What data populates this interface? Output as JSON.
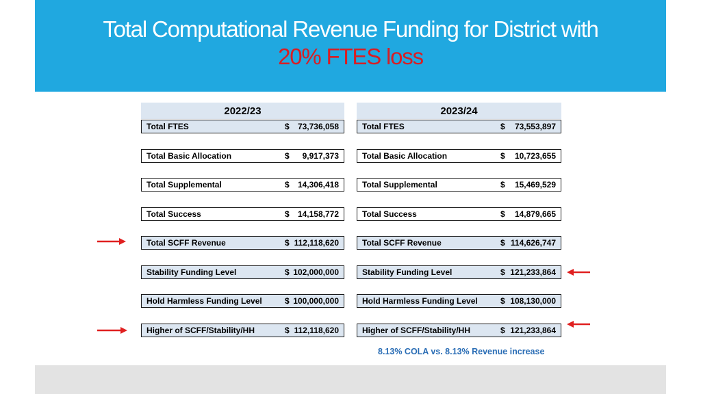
{
  "title": {
    "line1": "Total Computational Revenue Funding for District with",
    "line2": "20% FTES loss"
  },
  "left_table": {
    "year": "2022/23",
    "rows": [
      {
        "label": "Total FTES",
        "currency": "$",
        "amount": "73,736,058"
      },
      {
        "label": "Total Basic Allocation",
        "currency": "$",
        "amount": "9,917,373"
      },
      {
        "label": "Total Supplemental",
        "currency": "$",
        "amount": "14,306,418"
      },
      {
        "label": "Total Success",
        "currency": "$",
        "amount": "14,158,772"
      },
      {
        "label": "Total SCFF Revenue",
        "currency": "$",
        "amount": "112,118,620"
      },
      {
        "label": "Stability Funding Level",
        "currency": "$",
        "amount": "102,000,000"
      },
      {
        "label": "Hold Harmless Funding Level",
        "currency": "$",
        "amount": "100,000,000"
      },
      {
        "label": "Higher of SCFF/Stability/HH",
        "currency": "$",
        "amount": "112,118,620"
      }
    ]
  },
  "right_table": {
    "year": "2023/24",
    "rows": [
      {
        "label": "Total FTES",
        "currency": "$",
        "amount": "73,553,897"
      },
      {
        "label": "Total Basic Allocation",
        "currency": "$",
        "amount": "10,723,655"
      },
      {
        "label": "Total Supplemental",
        "currency": "$",
        "amount": "15,469,529"
      },
      {
        "label": "Total Success",
        "currency": "$",
        "amount": "14,879,665"
      },
      {
        "label": "Total SCFF Revenue",
        "currency": "$",
        "amount": "114,626,747"
      },
      {
        "label": "Stability Funding Level",
        "currency": "$",
        "amount": "121,233,864"
      },
      {
        "label": "Hold Harmless Funding Level",
        "currency": "$",
        "amount": "108,130,000"
      },
      {
        "label": "Higher of SCFF/Stability/HH",
        "currency": "$",
        "amount": "121,233,864"
      }
    ]
  },
  "note": "8.13% COLA vs. 8.13% Revenue increase",
  "colors": {
    "banner": "#20a8e0",
    "title": "#ffffff",
    "title_highlight": "#d81e24",
    "header_fill": "#dce6f1",
    "arrow": "#e02020",
    "note": "#2a6db5"
  }
}
